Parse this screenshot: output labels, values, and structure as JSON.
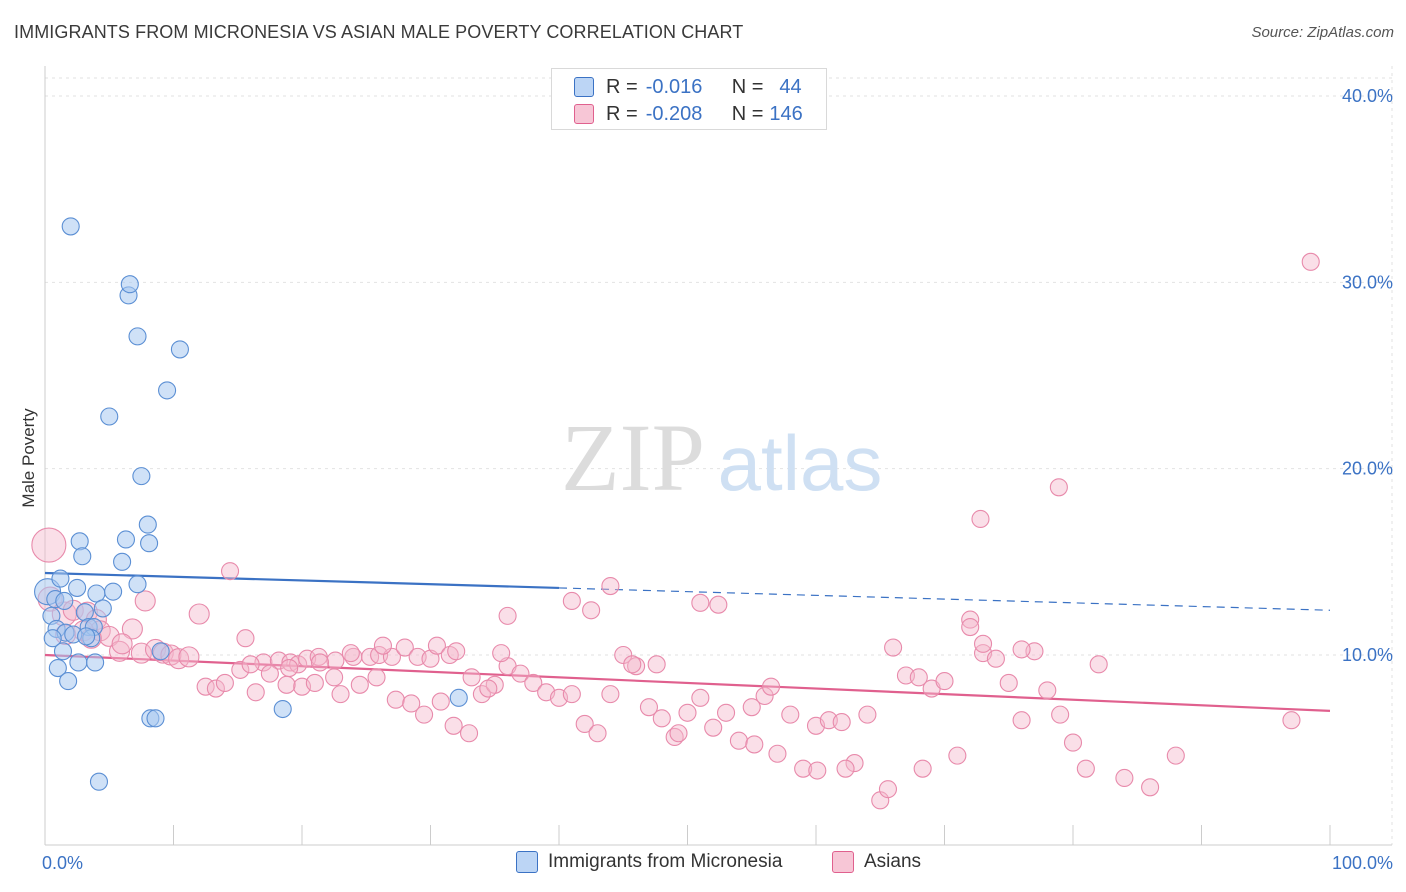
{
  "title": "IMMIGRANTS FROM MICRONESIA VS ASIAN MALE POVERTY CORRELATION CHART",
  "source": "Source: ZipAtlas.com",
  "watermark": {
    "zip": "ZIP",
    "atlas": "atlas"
  },
  "colors": {
    "blue": "#3b72c4",
    "blue_fill": "#a8c8f0",
    "pink": "#e0608e",
    "pink_fill": "#f5b7cb"
  },
  "legend": {
    "series1": {
      "r_label": "R =",
      "r_value": "-0.016",
      "n_label": "N =",
      "n_value": "44"
    },
    "series2": {
      "r_label": "R =",
      "r_value": "-0.208",
      "n_label": "N =",
      "n_value": "146"
    }
  },
  "chart_data": {
    "type": "scatter",
    "title": "IMMIGRANTS FROM MICRONESIA VS ASIAN MALE POVERTY CORRELATION CHART",
    "xlabel": "",
    "ylabel": "Male Poverty",
    "xlim": [
      0,
      100
    ],
    "ylim": [
      0,
      42
    ],
    "x_tick_labels": [
      "0.0%",
      "100.0%"
    ],
    "y_ticks": [
      10,
      20,
      30,
      40
    ],
    "y_tick_labels": [
      "10.0%",
      "20.0%",
      "30.0%",
      "40.0%"
    ],
    "grid": true,
    "legend_position": "top-center",
    "series": [
      {
        "name": "Immigrants from Micronesia",
        "color": "#3b72c4",
        "trend": {
          "x": [
            0,
            40
          ],
          "y": [
            14.4,
            13.6
          ],
          "dashed_to": [
            100,
            12.4
          ]
        },
        "points": [
          [
            2.0,
            33.0
          ],
          [
            6.5,
            29.3
          ],
          [
            6.6,
            29.9
          ],
          [
            7.2,
            27.1
          ],
          [
            10.5,
            26.4
          ],
          [
            9.5,
            24.2
          ],
          [
            5.0,
            22.8
          ],
          [
            7.5,
            19.6
          ],
          [
            8.0,
            17.0
          ],
          [
            8.1,
            16.0
          ],
          [
            2.7,
            16.1
          ],
          [
            6.3,
            16.2
          ],
          [
            2.9,
            15.3
          ],
          [
            6.0,
            15.0
          ],
          [
            0.2,
            13.4
          ],
          [
            1.2,
            14.1
          ],
          [
            2.5,
            13.6
          ],
          [
            4.0,
            13.3
          ],
          [
            5.3,
            13.4
          ],
          [
            7.2,
            13.8
          ],
          [
            0.8,
            13.0
          ],
          [
            1.5,
            12.9
          ],
          [
            4.5,
            12.5
          ],
          [
            3.1,
            12.3
          ],
          [
            0.5,
            12.1
          ],
          [
            3.4,
            11.5
          ],
          [
            3.8,
            11.5
          ],
          [
            0.9,
            11.4
          ],
          [
            1.6,
            11.2
          ],
          [
            2.2,
            11.1
          ],
          [
            3.6,
            10.9
          ],
          [
            0.6,
            10.9
          ],
          [
            3.2,
            11.0
          ],
          [
            1.4,
            10.2
          ],
          [
            9.0,
            10.2
          ],
          [
            2.6,
            9.6
          ],
          [
            3.9,
            9.6
          ],
          [
            1.0,
            9.3
          ],
          [
            1.8,
            8.6
          ],
          [
            18.5,
            7.1
          ],
          [
            32.2,
            7.7
          ],
          [
            8.2,
            6.6
          ],
          [
            8.6,
            6.6
          ],
          [
            4.2,
            3.2
          ]
        ]
      },
      {
        "name": "Asians",
        "color": "#e0608e",
        "trend": {
          "x": [
            0,
            100
          ],
          "y": [
            10.0,
            7.0
          ]
        },
        "points": [
          [
            0.3,
            15.9
          ],
          [
            0.4,
            13.0
          ],
          [
            1.5,
            12.2
          ],
          [
            2.2,
            12.4
          ],
          [
            3.3,
            12.3
          ],
          [
            4.0,
            11.9
          ],
          [
            4.3,
            11.3
          ],
          [
            6.8,
            11.4
          ],
          [
            5.0,
            11.0
          ],
          [
            1.6,
            11.1
          ],
          [
            3.0,
            11.3
          ],
          [
            3.6,
            10.9
          ],
          [
            5.8,
            10.2
          ],
          [
            6.0,
            10.6
          ],
          [
            7.5,
            10.1
          ],
          [
            8.6,
            10.3
          ],
          [
            9.2,
            10.1
          ],
          [
            9.8,
            10.0
          ],
          [
            10.4,
            9.8
          ],
          [
            11.2,
            9.9
          ],
          [
            7.8,
            12.9
          ],
          [
            12.0,
            12.2
          ],
          [
            14.4,
            14.5
          ],
          [
            15.6,
            10.9
          ],
          [
            17.0,
            9.6
          ],
          [
            18.2,
            9.7
          ],
          [
            19.1,
            9.6
          ],
          [
            19.7,
            9.5
          ],
          [
            20.4,
            9.8
          ],
          [
            21.3,
            9.9
          ],
          [
            22.6,
            9.7
          ],
          [
            24.0,
            9.9
          ],
          [
            25.3,
            9.9
          ],
          [
            26.0,
            10.0
          ],
          [
            27.0,
            9.9
          ],
          [
            28.0,
            10.4
          ],
          [
            29.0,
            9.9
          ],
          [
            30.0,
            9.8
          ],
          [
            12.5,
            8.3
          ],
          [
            13.3,
            8.2
          ],
          [
            14.0,
            8.5
          ],
          [
            15.2,
            9.2
          ],
          [
            16.0,
            9.5
          ],
          [
            17.5,
            9.0
          ],
          [
            19.0,
            9.3
          ],
          [
            20.0,
            8.3
          ],
          [
            21.0,
            8.5
          ],
          [
            22.5,
            8.8
          ],
          [
            23.0,
            7.9
          ],
          [
            24.5,
            8.4
          ],
          [
            25.8,
            8.8
          ],
          [
            27.3,
            7.6
          ],
          [
            28.5,
            7.4
          ],
          [
            29.5,
            6.8
          ],
          [
            30.8,
            7.5
          ],
          [
            31.8,
            6.2
          ],
          [
            33.0,
            5.8
          ],
          [
            34.0,
            7.9
          ],
          [
            35.0,
            8.4
          ],
          [
            36.0,
            9.4
          ],
          [
            37.0,
            9.0
          ],
          [
            38.0,
            8.5
          ],
          [
            39.0,
            8.0
          ],
          [
            40.0,
            7.7
          ],
          [
            41.0,
            7.9
          ],
          [
            42.0,
            6.3
          ],
          [
            43.0,
            5.8
          ],
          [
            44.0,
            7.9
          ],
          [
            45.0,
            10.0
          ],
          [
            46.0,
            9.4
          ],
          [
            47.0,
            7.2
          ],
          [
            48.0,
            6.6
          ],
          [
            49.0,
            5.6
          ],
          [
            50.0,
            6.9
          ],
          [
            51.0,
            7.7
          ],
          [
            52.0,
            6.1
          ],
          [
            53.0,
            6.9
          ],
          [
            54.0,
            5.4
          ],
          [
            55.0,
            7.2
          ],
          [
            56.0,
            7.8
          ],
          [
            57.0,
            4.7
          ],
          [
            58.0,
            6.8
          ],
          [
            59.0,
            3.9
          ],
          [
            60.0,
            6.2
          ],
          [
            61.0,
            6.5
          ],
          [
            62.0,
            6.4
          ],
          [
            63.0,
            4.2
          ],
          [
            64.0,
            6.8
          ],
          [
            65.0,
            2.2
          ],
          [
            66.0,
            10.4
          ],
          [
            67.0,
            8.9
          ],
          [
            68.0,
            8.8
          ],
          [
            69.0,
            8.2
          ],
          [
            70.0,
            8.6
          ],
          [
            71.0,
            4.6
          ],
          [
            72.0,
            11.9
          ],
          [
            73.0,
            10.1
          ],
          [
            74.0,
            9.8
          ],
          [
            75.0,
            8.5
          ],
          [
            76.0,
            6.5
          ],
          [
            77.0,
            10.2
          ],
          [
            78.0,
            8.1
          ],
          [
            79.0,
            6.8
          ],
          [
            80.0,
            5.3
          ],
          [
            81.0,
            3.9
          ],
          [
            82.0,
            9.5
          ],
          [
            84.0,
            3.4
          ],
          [
            86.0,
            2.9
          ],
          [
            88.0,
            4.6
          ],
          [
            97.0,
            6.5
          ],
          [
            98.5,
            31.1
          ],
          [
            72.8,
            17.3
          ],
          [
            72.0,
            11.5
          ],
          [
            73.0,
            10.6
          ],
          [
            76.0,
            10.3
          ],
          [
            68.3,
            3.9
          ],
          [
            56.5,
            8.3
          ],
          [
            52.4,
            12.7
          ],
          [
            51.0,
            12.8
          ],
          [
            41.0,
            12.9
          ],
          [
            36.0,
            12.1
          ],
          [
            35.5,
            10.1
          ],
          [
            30.5,
            10.5
          ],
          [
            31.5,
            10.0
          ],
          [
            32.0,
            10.2
          ],
          [
            33.2,
            8.8
          ],
          [
            34.5,
            8.2
          ],
          [
            26.3,
            10.5
          ],
          [
            23.8,
            10.1
          ],
          [
            21.4,
            9.6
          ],
          [
            18.8,
            8.4
          ],
          [
            16.4,
            8.0
          ],
          [
            44.0,
            13.7
          ],
          [
            42.5,
            12.4
          ],
          [
            45.7,
            9.5
          ],
          [
            47.6,
            9.5
          ],
          [
            49.3,
            5.8
          ],
          [
            55.2,
            5.2
          ],
          [
            62.3,
            3.9
          ],
          [
            65.6,
            2.8
          ],
          [
            78.9,
            19.0
          ],
          [
            60.1,
            3.8
          ]
        ]
      }
    ]
  },
  "bottom_legend": {
    "series1": "Immigrants from Micronesia",
    "series2": "Asians"
  }
}
